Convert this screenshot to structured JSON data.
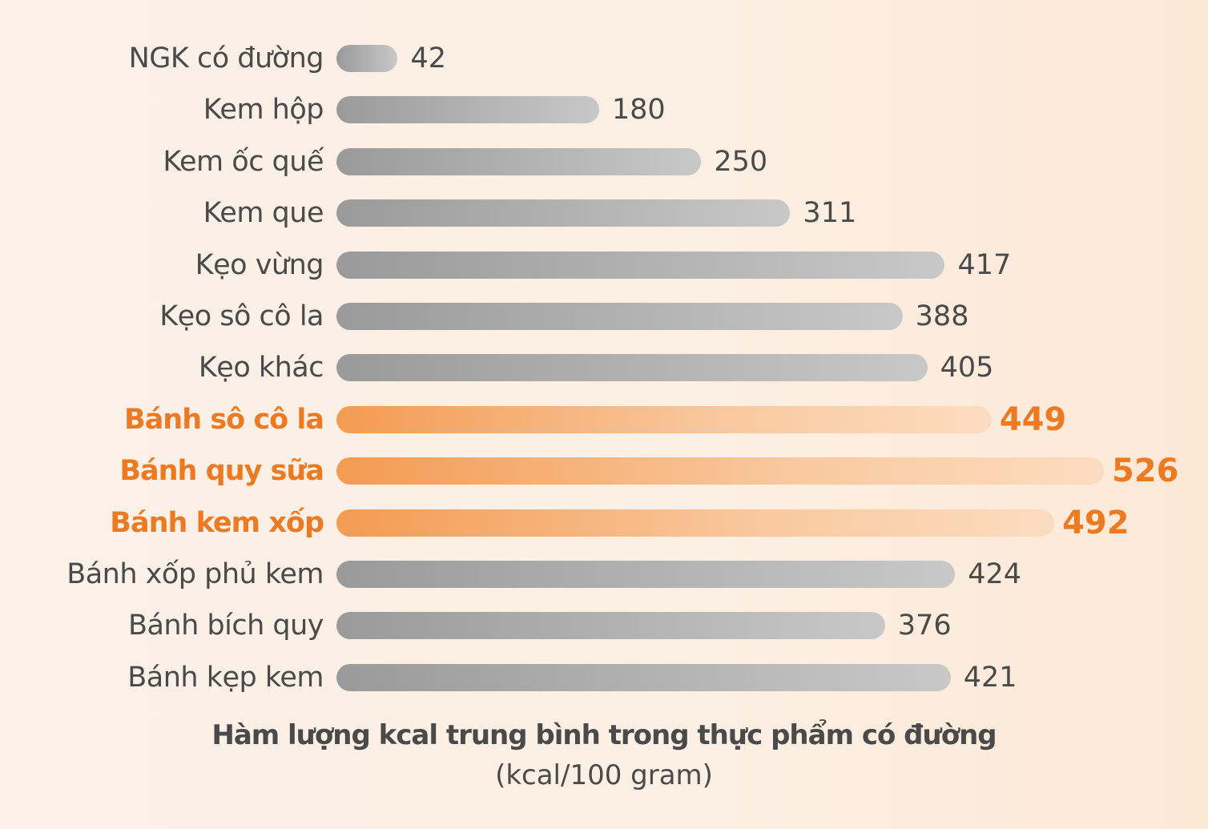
{
  "chart_data": {
    "type": "bar",
    "orientation": "horizontal",
    "title": "Hàm lượng kcal trung bình trong thực phẩm có đường",
    "subtitle": "(kcal/100 gram)",
    "xlabel": "",
    "ylabel": "",
    "unit": "kcal/100 gram",
    "grid": false,
    "legend": null,
    "categories": [
      "NGK có đường",
      "Kem hộp",
      "Kem ốc quế",
      "Kem que",
      "Kẹo vừng",
      "Kẹo sô cô la",
      "Kẹo khác",
      "Bánh sô cô la",
      "Bánh quy sữa",
      "Bánh kem xốp",
      "Bánh xốp phủ kem",
      "Bánh bích quy",
      "Bánh kẹp kem"
    ],
    "values": [
      42,
      180,
      250,
      311,
      417,
      388,
      405,
      449,
      526,
      492,
      424,
      376,
      421
    ],
    "highlighted": [
      "Bánh sô cô la",
      "Bánh quy sữa",
      "Bánh kem xốp"
    ],
    "colors": {
      "default_bar_start": "#9a9a9a",
      "default_bar_end": "#c8c8c8",
      "highlight_bar_start": "#f39b52",
      "highlight_bar_end": "#fcdcc0",
      "highlight_text": "#ec7a22",
      "text": "#4a4a4a",
      "background": "#fbf1e8"
    }
  },
  "caption": {
    "title": "Hàm lượng kcal trung bình trong thực phẩm có đường",
    "subtitle": "(kcal/100 gram)"
  }
}
